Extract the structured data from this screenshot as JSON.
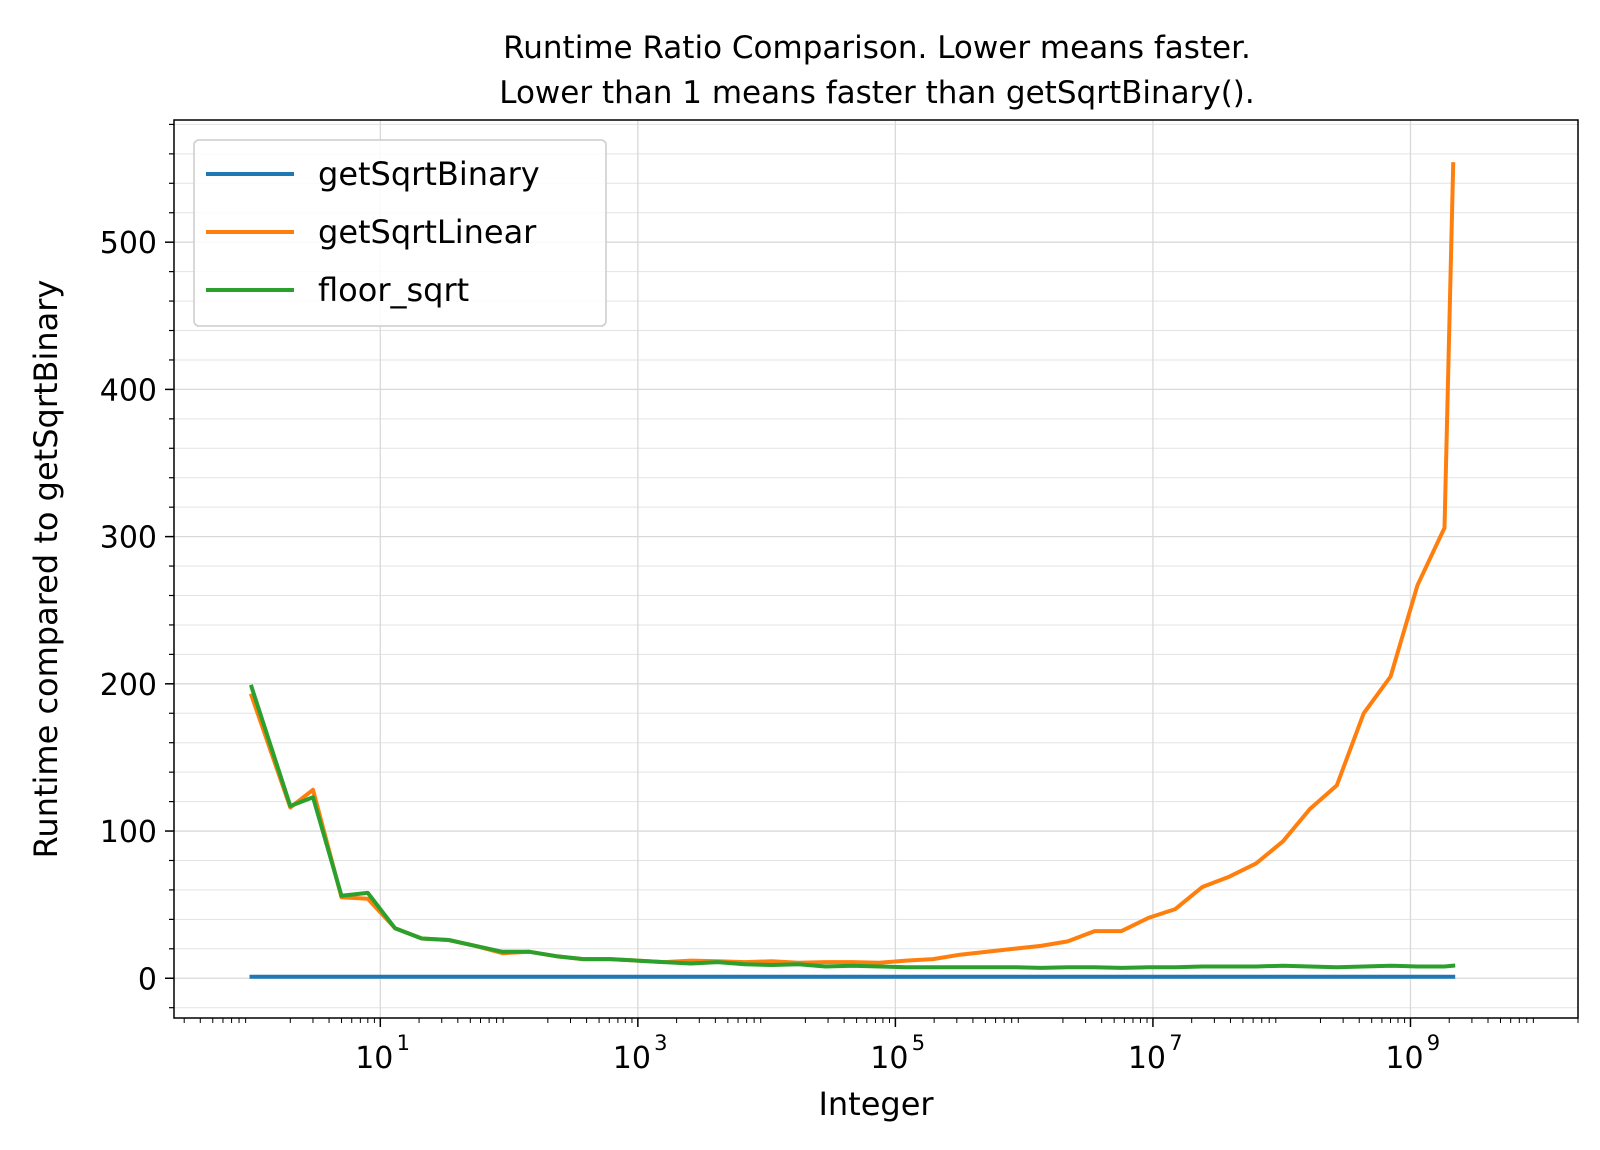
{
  "chart_data": {
    "type": "line",
    "title_line1": "Runtime Ratio Comparison. Lower means faster.",
    "title_line2": "Lower than 1 means faster than getSqrtBinary().",
    "xlabel": "Integer",
    "ylabel": "Runtime compared to getSqrtBinary",
    "xscale": "log",
    "xlim": [
      0.25,
      20000000000
    ],
    "ylim": [
      -27,
      583
    ],
    "grid": true,
    "legend_position": "upper left",
    "yticks": [
      0,
      100,
      200,
      300,
      400,
      500
    ],
    "yminor_step": 20,
    "ytick_labels": [
      "0",
      "100",
      "200",
      "300",
      "400",
      "500"
    ],
    "xticks": [
      10,
      1000,
      100000,
      10000000,
      1000000000
    ],
    "xtick_labels": [
      {
        "base": "10",
        "exp": "1"
      },
      {
        "base": "10",
        "exp": "3"
      },
      {
        "base": "10",
        "exp": "5"
      },
      {
        "base": "10",
        "exp": "7"
      },
      {
        "base": "10",
        "exp": "9"
      }
    ],
    "x": [
      1,
      2,
      3,
      5,
      8,
      13,
      21,
      34,
      55,
      89,
      144,
      233,
      377,
      610,
      987,
      1597,
      2584,
      4181,
      6765,
      10946,
      17711,
      28657,
      46368,
      75025,
      121393,
      196418,
      317811,
      514229,
      832040,
      1346269,
      2178309,
      3524578,
      5702887,
      9227465,
      14930352,
      24157817,
      39088169,
      63245986,
      102334155,
      165580141,
      267914296,
      433494437,
      701408733,
      1134903170,
      1836311903,
      2147483647
    ],
    "series": [
      {
        "name": "getSqrtBinary",
        "color": "#1f77b4",
        "values": [
          1,
          1,
          1,
          1,
          1,
          1,
          1,
          1,
          1,
          1,
          1,
          1,
          1,
          1,
          1,
          1,
          1,
          1,
          1,
          1,
          1,
          1,
          1,
          1,
          1,
          1,
          1,
          1,
          1,
          1,
          1,
          1,
          1,
          1,
          1,
          1,
          1,
          1,
          1,
          1,
          1,
          1,
          1,
          1,
          1,
          1
        ]
      },
      {
        "name": "getSqrtLinear",
        "color": "#ff7f0e",
        "values": [
          192,
          116,
          128,
          55,
          54,
          34,
          27,
          26,
          22,
          17,
          18,
          15,
          13,
          13,
          12,
          11,
          12,
          11.5,
          11,
          11.5,
          10.5,
          11,
          11,
          10.5,
          12,
          13,
          16,
          18,
          20,
          22,
          25,
          32,
          32,
          41,
          47,
          62,
          69,
          78,
          93,
          115,
          131,
          180,
          205,
          267,
          306,
          553
        ]
      },
      {
        "name": "floor_sqrt",
        "color": "#2ca02c",
        "values": [
          198,
          117,
          123,
          56,
          58,
          34,
          27,
          26,
          22,
          18,
          18,
          15,
          13,
          13,
          12,
          11,
          10,
          11,
          9.5,
          9,
          9.5,
          8,
          8.5,
          8,
          7.5,
          7.5,
          7.5,
          7.5,
          7.5,
          7,
          7.5,
          7.5,
          7,
          7.5,
          7.5,
          8,
          8,
          8,
          8.5,
          8,
          7.5,
          8,
          8.5,
          8,
          8,
          8.5
        ]
      }
    ]
  }
}
